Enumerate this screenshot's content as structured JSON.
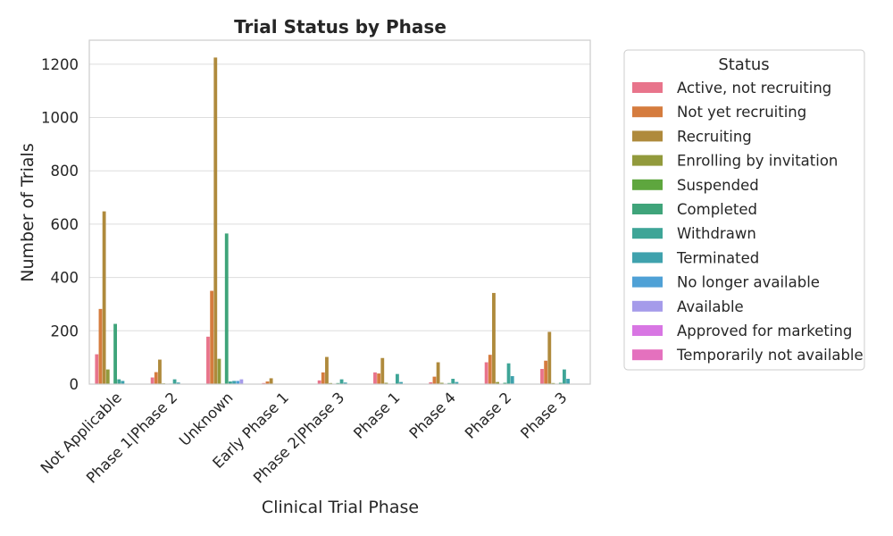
{
  "chart_data": {
    "type": "bar",
    "title": "Trial Status by Phase",
    "xlabel": "Clinical Trial Phase",
    "ylabel": "Number of Trials",
    "ylim": [
      0,
      1290
    ],
    "yticks": [
      0,
      200,
      400,
      600,
      800,
      1000,
      1200
    ],
    "grid": true,
    "legend_title": "Status",
    "legend_position": "outside-right",
    "categories": [
      "Not Applicable",
      "Phase 1|Phase 2",
      "Unknown",
      "Early Phase 1",
      "Phase 2|Phase 3",
      "Phase 1",
      "Phase 4",
      "Phase 2",
      "Phase 3"
    ],
    "series": [
      {
        "name": "Active, not recruiting",
        "color": "#e8748b",
        "values": [
          112,
          25,
          178,
          4,
          14,
          44,
          7,
          82,
          57
        ]
      },
      {
        "name": "Not yet recruiting",
        "color": "#d57c3e",
        "values": [
          282,
          45,
          350,
          10,
          44,
          40,
          28,
          110,
          88
        ]
      },
      {
        "name": "Recruiting",
        "color": "#af8a3c",
        "values": [
          648,
          92,
          1225,
          22,
          102,
          98,
          82,
          342,
          196
        ]
      },
      {
        "name": "Enrolling by invitation",
        "color": "#929a3c",
        "values": [
          55,
          3,
          95,
          1,
          4,
          5,
          5,
          8,
          4
        ]
      },
      {
        "name": "Suspended",
        "color": "#5ea63e",
        "values": [
          1,
          0,
          2,
          0,
          0,
          0,
          0,
          1,
          1
        ]
      },
      {
        "name": "Completed",
        "color": "#3fa47a",
        "values": [
          226,
          2,
          565,
          0,
          4,
          2,
          4,
          5,
          5
        ]
      },
      {
        "name": "Withdrawn",
        "color": "#3ea597",
        "values": [
          18,
          18,
          10,
          1,
          18,
          38,
          20,
          78,
          55
        ]
      },
      {
        "name": "Terminated",
        "color": "#3fa2ad",
        "values": [
          12,
          6,
          12,
          1,
          6,
          8,
          8,
          30,
          20
        ]
      },
      {
        "name": "No longer available",
        "color": "#4fa1d6",
        "values": [
          0,
          0,
          12,
          0,
          0,
          0,
          0,
          0,
          0
        ]
      },
      {
        "name": "Available",
        "color": "#a59bea",
        "values": [
          0,
          0,
          18,
          0,
          0,
          0,
          0,
          0,
          0
        ]
      },
      {
        "name": "Approved for marketing",
        "color": "#d876e3",
        "values": [
          0,
          0,
          0,
          0,
          0,
          0,
          0,
          0,
          0
        ]
      },
      {
        "name": "Temporarily not available",
        "color": "#e471be",
        "values": [
          0,
          0,
          0,
          0,
          0,
          0,
          0,
          0,
          0
        ]
      }
    ]
  }
}
